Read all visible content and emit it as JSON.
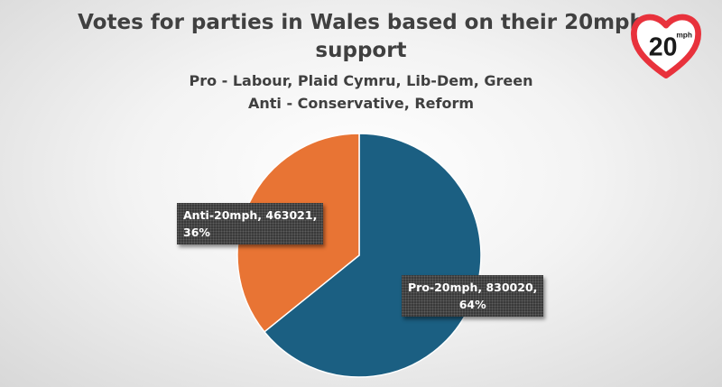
{
  "chart_data": {
    "type": "pie",
    "title": "Votes for parties in Wales based on their 20mph support",
    "subtitle_lines": [
      "Pro - Labour, Plaid Cymru, Lib-Dem, Green",
      "Anti - Conservative, Reform"
    ],
    "slices": [
      {
        "label": "Pro-20mph",
        "value": 830020,
        "percent": "64%",
        "color": "#1b5f82"
      },
      {
        "label": "Anti-20mph",
        "value": 463021,
        "percent": "36%",
        "color": "#e87434"
      }
    ],
    "data_labels": [
      {
        "line1": "Pro-20mph, 830020,",
        "line2": "64%"
      },
      {
        "line1": "Anti-20mph, 463021,",
        "line2": "36%"
      }
    ]
  },
  "logo": {
    "text": "20",
    "unit": "mph",
    "icon": "heart-icon",
    "color": "#e8323c"
  }
}
